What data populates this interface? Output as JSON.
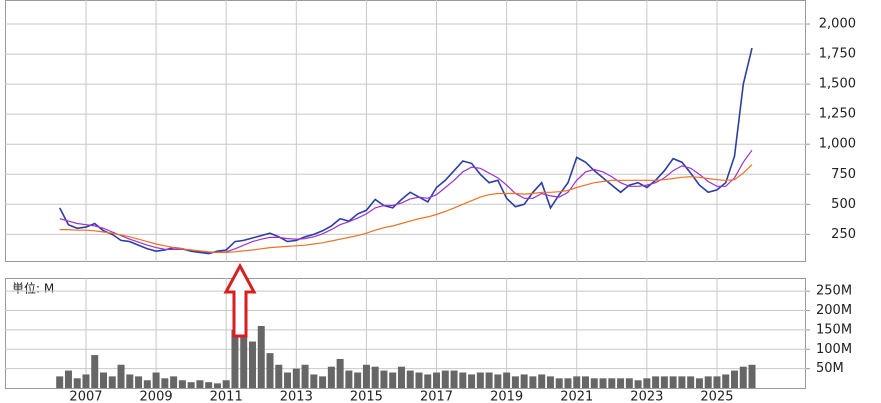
{
  "chart_data": [
    {
      "type": "line",
      "x": [
        2006.25,
        2006.5,
        2006.75,
        2007,
        2007.25,
        2007.5,
        2007.75,
        2008,
        2008.25,
        2008.5,
        2008.75,
        2009,
        2009.25,
        2009.5,
        2009.75,
        2010,
        2010.25,
        2010.5,
        2010.75,
        2011,
        2011.25,
        2011.5,
        2011.75,
        2012,
        2012.25,
        2012.5,
        2012.75,
        2013,
        2013.25,
        2013.5,
        2013.75,
        2014,
        2014.25,
        2014.5,
        2014.75,
        2015,
        2015.25,
        2015.5,
        2015.75,
        2016,
        2016.25,
        2016.5,
        2016.75,
        2017,
        2017.25,
        2017.5,
        2017.75,
        2018,
        2018.25,
        2018.5,
        2018.75,
        2019,
        2019.25,
        2019.5,
        2019.75,
        2020,
        2020.25,
        2020.5,
        2020.75,
        2021,
        2021.25,
        2021.5,
        2021.75,
        2022,
        2022.25,
        2022.5,
        2022.75,
        2023,
        2023.25,
        2023.5,
        2023.75,
        2024,
        2024.25,
        2024.5,
        2024.75,
        2025,
        2025.25,
        2025.5,
        2025.75,
        2026
      ],
      "series": [
        {
          "color": "#2b3fa0",
          "values": [
            470,
            330,
            300,
            310,
            340,
            280,
            250,
            200,
            190,
            160,
            130,
            110,
            120,
            140,
            130,
            110,
            100,
            90,
            110,
            120,
            190,
            200,
            220,
            240,
            260,
            230,
            190,
            200,
            230,
            250,
            280,
            320,
            380,
            360,
            420,
            450,
            540,
            490,
            470,
            540,
            600,
            560,
            520,
            640,
            700,
            780,
            860,
            840,
            750,
            680,
            700,
            550,
            480,
            500,
            600,
            680,
            470,
            580,
            680,
            890,
            850,
            780,
            720,
            660,
            600,
            660,
            680,
            640,
            700,
            780,
            880,
            850,
            760,
            660,
            600,
            620,
            680,
            900,
            1500,
            1800
          ]
        },
        {
          "color": "#9b30d0",
          "values": [
            380,
            360,
            340,
            330,
            320,
            300,
            270,
            240,
            210,
            185,
            160,
            140,
            125,
            125,
            125,
            120,
            110,
            100,
            100,
            105,
            130,
            160,
            190,
            210,
            225,
            225,
            215,
            210,
            215,
            230,
            255,
            290,
            330,
            355,
            385,
            420,
            470,
            490,
            490,
            510,
            545,
            560,
            550,
            580,
            640,
            700,
            770,
            810,
            800,
            760,
            720,
            660,
            590,
            550,
            550,
            590,
            570,
            560,
            600,
            700,
            770,
            790,
            770,
            730,
            680,
            650,
            650,
            660,
            680,
            720,
            780,
            820,
            800,
            750,
            690,
            650,
            650,
            720,
            850,
            950
          ]
        },
        {
          "color": "#f07020",
          "values": [
            290,
            290,
            285,
            285,
            280,
            270,
            260,
            245,
            230,
            210,
            190,
            170,
            155,
            140,
            130,
            120,
            112,
            105,
            100,
            100,
            105,
            112,
            120,
            130,
            140,
            145,
            150,
            155,
            160,
            170,
            180,
            195,
            210,
            225,
            240,
            260,
            285,
            305,
            320,
            340,
            360,
            380,
            395,
            415,
            440,
            470,
            500,
            530,
            560,
            580,
            590,
            590,
            590,
            585,
            590,
            600,
            600,
            605,
            615,
            640,
            660,
            680,
            690,
            700,
            700,
            700,
            700,
            700,
            700,
            705,
            715,
            725,
            730,
            725,
            715,
            705,
            700,
            705,
            760,
            830
          ]
        }
      ],
      "xlim": [
        2004.69,
        2027.54
      ],
      "xticks": [
        2007,
        2009,
        2011,
        2013,
        2015,
        2017,
        2019,
        2021,
        2023,
        2025
      ],
      "ylim": [
        20,
        2200
      ],
      "yticks": [
        250,
        500,
        750,
        {
          "value": 1000,
          "label": "1,000"
        },
        {
          "value": 1250,
          "label": "1,250"
        },
        {
          "value": 1500,
          "label": "1,500"
        },
        {
          "value": 1750,
          "label": "1,750"
        },
        {
          "value": 2000,
          "label": "2,000"
        }
      ],
      "grid": true
    },
    {
      "type": "bar",
      "annotation": "単位: M",
      "x": [
        2006.25,
        2006.5,
        2006.75,
        2007,
        2007.25,
        2007.5,
        2007.75,
        2008,
        2008.25,
        2008.5,
        2008.75,
        2009,
        2009.25,
        2009.5,
        2009.75,
        2010,
        2010.25,
        2010.5,
        2010.75,
        2011,
        2011.25,
        2011.5,
        2011.75,
        2012,
        2012.25,
        2012.5,
        2012.75,
        2013,
        2013.25,
        2013.5,
        2013.75,
        2014,
        2014.25,
        2014.5,
        2014.75,
        2015,
        2015.25,
        2015.5,
        2015.75,
        2016,
        2016.25,
        2016.5,
        2016.75,
        2017,
        2017.25,
        2017.5,
        2017.75,
        2018,
        2018.25,
        2018.5,
        2018.75,
        2019,
        2019.25,
        2019.5,
        2019.75,
        2020,
        2020.25,
        2020.5,
        2020.75,
        2021,
        2021.25,
        2021.5,
        2021.75,
        2022,
        2022.25,
        2022.5,
        2022.75,
        2023,
        2023.25,
        2023.5,
        2023.75,
        2024,
        2024.25,
        2024.5,
        2024.75,
        2025,
        2025.25,
        2025.5,
        2025.75,
        2026
      ],
      "values": [
        30,
        45,
        25,
        35,
        85,
        40,
        30,
        60,
        35,
        30,
        20,
        40,
        25,
        30,
        20,
        15,
        20,
        15,
        12,
        20,
        150,
        180,
        120,
        160,
        90,
        60,
        40,
        50,
        60,
        35,
        30,
        55,
        75,
        45,
        40,
        60,
        55,
        45,
        40,
        55,
        45,
        40,
        35,
        40,
        45,
        45,
        40,
        35,
        40,
        40,
        35,
        40,
        30,
        35,
        30,
        35,
        30,
        25,
        25,
        30,
        30,
        25,
        25,
        25,
        25,
        25,
        20,
        25,
        30,
        30,
        30,
        30,
        30,
        25,
        30,
        30,
        35,
        45,
        55,
        60
      ],
      "color": "#666666",
      "xlim": [
        2004.69,
        2027.54
      ],
      "xticks": [
        2007,
        2009,
        2011,
        2013,
        2015,
        2017,
        2019,
        2021,
        2023,
        2025
      ],
      "ylim": [
        0,
        284
      ],
      "yticks": [
        {
          "value": 50,
          "label": "50M"
        },
        {
          "value": 100,
          "label": "100M"
        },
        {
          "value": 150,
          "label": "150M"
        },
        {
          "value": 200,
          "label": "200M"
        },
        {
          "value": 250,
          "label": "250M"
        }
      ],
      "grid": true
    }
  ]
}
